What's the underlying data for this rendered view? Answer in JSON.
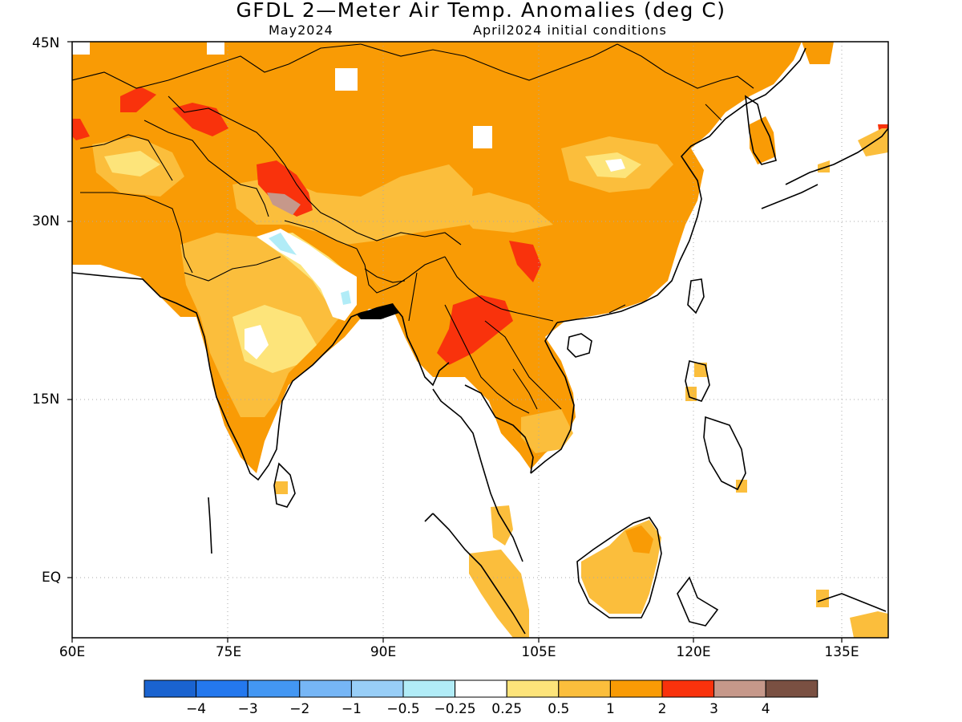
{
  "title": "GFDL 2—Meter Air Temp. Anomalies (deg C)",
  "subtitle_left": "May2024",
  "subtitle_right": "April2024 initial conditions",
  "lat_labels": [
    "45N",
    "30N",
    "15N",
    "EQ"
  ],
  "lon_labels": [
    "60E",
    "75E",
    "90E",
    "105E",
    "120E",
    "135E"
  ],
  "colorbar": {
    "colors": [
      "#1a63d0",
      "#2478ee",
      "#4397f3",
      "#76b6f6",
      "#98cef7",
      "#b1ecf7",
      "#ffffff",
      "#fde47a",
      "#fbbe3c",
      "#f99b05",
      "#f9320c",
      "#c6988a",
      "#7a5042"
    ],
    "labels": [
      "−4",
      "−3",
      "−2",
      "−1",
      "−0.5",
      "−0.25",
      "0.25",
      "0.5",
      "1",
      "2",
      "3",
      "4"
    ]
  }
}
